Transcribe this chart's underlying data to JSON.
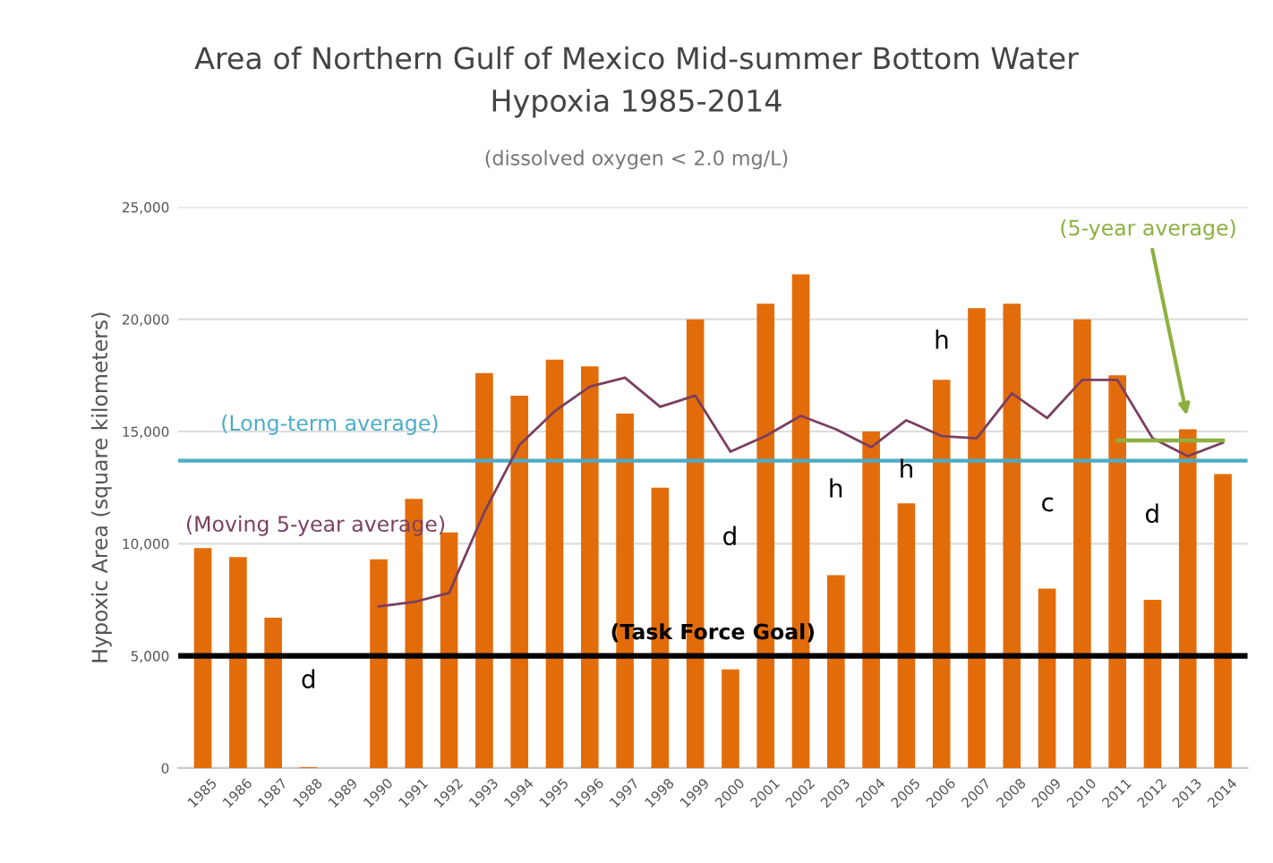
{
  "chart_data": {
    "type": "bar",
    "title": "Area of Northern Gulf of Mexico Mid-summer Bottom Water\nHypoxia 1985-2014",
    "subtitle": "(dissolved oxygen < 2.0 mg/L)",
    "ylabel": "Hypoxic Area (square kilometers)",
    "categories": [
      "1985",
      "1986",
      "1987",
      "1988",
      "1989",
      "1990",
      "1991",
      "1992",
      "1993",
      "1994",
      "1995",
      "1996",
      "1997",
      "1998",
      "1999",
      "2000",
      "2001",
      "2002",
      "2003",
      "2004",
      "2005",
      "2006",
      "2007",
      "2008",
      "2009",
      "2010",
      "2011",
      "2012",
      "2013",
      "2014"
    ],
    "series": [
      {
        "color": "#e36c0a",
        "values": [
          9800,
          9400,
          6700,
          40,
          null,
          9300,
          12000,
          10500,
          17600,
          16600,
          18200,
          17900,
          15800,
          12500,
          20000,
          4400,
          20700,
          22000,
          8600,
          15000,
          11800,
          17300,
          20500,
          20700,
          8000,
          20000,
          17500,
          7500,
          15100,
          13100
        ]
      },
      {
        "type": "line",
        "name": "(Moving 5-year average)",
        "color": "#7b3f5f",
        "values": [
          null,
          null,
          null,
          null,
          null,
          7200,
          7400,
          7800,
          11400,
          14400,
          15900,
          17000,
          17400,
          16100,
          16600,
          14100,
          14800,
          15700,
          15100,
          14300,
          15500,
          14800,
          14700,
          16700,
          15600,
          17300,
          17300,
          14700,
          13900,
          14500
        ]
      },
      {
        "type": "line",
        "name": "(5-year average)",
        "color": "#8db040",
        "values": [
          null,
          null,
          null,
          null,
          null,
          null,
          null,
          null,
          null,
          null,
          null,
          null,
          null,
          null,
          null,
          null,
          null,
          null,
          null,
          null,
          null,
          null,
          null,
          null,
          null,
          null,
          14600,
          14600,
          14600,
          14600
        ]
      }
    ],
    "ref_lines": [
      {
        "axis": "y",
        "value": 13700,
        "label": "(Long-term average)",
        "color": "#4bacc6"
      },
      {
        "axis": "y",
        "value": 5000,
        "label": "(Task Force Goal)",
        "color": "#000000"
      }
    ],
    "annotations": [
      "d",
      "d",
      "h",
      "h",
      "h",
      "c",
      "d"
    ],
    "ylim": [
      0,
      25000
    ],
    "yticks": [
      {
        "value": 0,
        "label": "0"
      },
      {
        "value": 5000,
        "label": "5,000"
      },
      {
        "value": 10000,
        "label": "10,000"
      },
      {
        "value": 15000,
        "label": "15,000"
      },
      {
        "value": 20000,
        "label": "20,000"
      },
      {
        "value": 25000,
        "label": "25,000"
      }
    ],
    "grid": "y",
    "legend": false,
    "marker": "none",
    "line_style": "solid"
  }
}
